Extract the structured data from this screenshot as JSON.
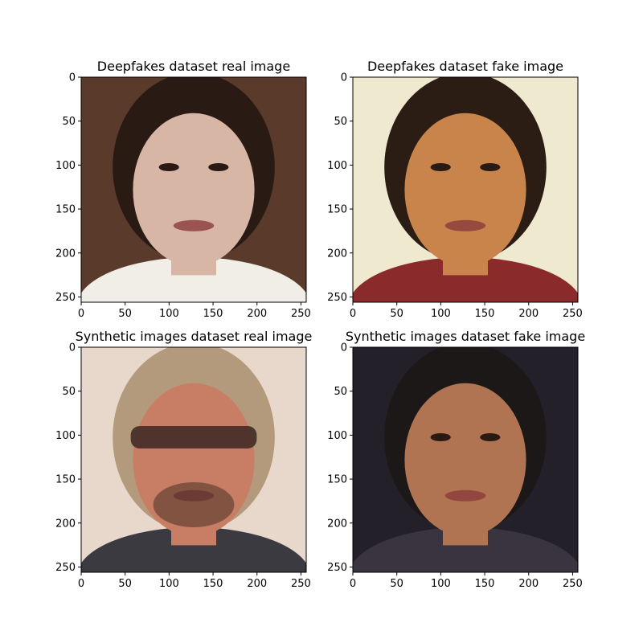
{
  "chart_data": [
    {
      "type": "image",
      "title": "Deepfakes dataset real image",
      "xticks": [
        0,
        50,
        100,
        150,
        200,
        250
      ],
      "yticks": [
        0,
        50,
        100,
        150,
        200,
        250
      ],
      "xlim": [
        0,
        256
      ],
      "ylim": [
        256,
        0
      ],
      "image_description": "woman with dark hair pulled back, earrings, white top, dark background",
      "palette": {
        "bg": "#5a3a2a",
        "hair": "#2a1a14",
        "skin": "#d8b6a6",
        "clothes": "#f0eee6"
      }
    },
    {
      "type": "image",
      "title": "Deepfakes dataset fake image",
      "xticks": [
        0,
        50,
        100,
        150,
        200,
        250
      ],
      "yticks": [
        0,
        50,
        100,
        150,
        200,
        250
      ],
      "xlim": [
        0,
        256
      ],
      "ylim": [
        256,
        0
      ],
      "image_description": "woman with dark hair, warm tan skin, light cream background",
      "palette": {
        "bg": "#efe9cf",
        "hair": "#2b1c14",
        "skin": "#c8844a",
        "clothes": "#8a2a2a"
      }
    },
    {
      "type": "image",
      "title": "Synthetic images dataset real image",
      "xticks": [
        0,
        50,
        100,
        150,
        200,
        250
      ],
      "yticks": [
        0,
        50,
        100,
        150,
        200,
        250
      ],
      "xlim": [
        0,
        256
      ],
      "ylim": [
        256,
        0
      ],
      "image_description": "man with long light hair, sunglasses, beard, dark jacket",
      "palette": {
        "bg": "#e8d8cc",
        "hair": "#b49a7c",
        "skin": "#c87e64",
        "clothes": "#3a3a40"
      }
    },
    {
      "type": "image",
      "title": "Synthetic images dataset fake image",
      "xticks": [
        0,
        50,
        100,
        150,
        200,
        250
      ],
      "yticks": [
        0,
        50,
        100,
        150,
        200,
        250
      ],
      "xlim": [
        0,
        256
      ],
      "ylim": [
        256,
        0
      ],
      "image_description": "smiling person with short dark hair, dark background",
      "palette": {
        "bg": "#24202a",
        "hair": "#1c1818",
        "skin": "#b07452",
        "clothes": "#3a3440"
      }
    }
  ]
}
